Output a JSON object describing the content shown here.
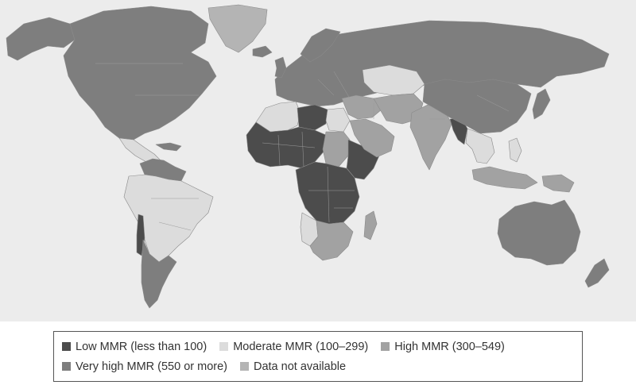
{
  "colors": {
    "ocean": "#ececec",
    "low": "#4c4c4c",
    "moderate": "#dcdcdc",
    "high": "#a2a2a2",
    "very_high": "#7e7e7e",
    "na": "#b4b4b4"
  },
  "legend": {
    "items": [
      {
        "key": "low",
        "label": "Low MMR (less than 100)",
        "color": "#4c4c4c"
      },
      {
        "key": "moderate",
        "label": "Moderate MMR (100–299)",
        "color": "#dcdcdc"
      },
      {
        "key": "high",
        "label": "High MMR (300–549)",
        "color": "#a2a2a2"
      },
      {
        "key": "very_high",
        "label": "Very high MMR (550 or more)",
        "color": "#7e7e7e"
      },
      {
        "key": "na",
        "label": "Data not available",
        "color": "#b4b4b4"
      }
    ]
  },
  "regions": [
    {
      "name": "north-america",
      "category": "very_high"
    },
    {
      "name": "greenland",
      "category": "na"
    },
    {
      "name": "alaska",
      "category": "very_high"
    },
    {
      "name": "central-america",
      "category": "moderate"
    },
    {
      "name": "caribbean",
      "category": "very_high"
    },
    {
      "name": "venezuela-guianas",
      "category": "very_high"
    },
    {
      "name": "south-america-north",
      "category": "moderate"
    },
    {
      "name": "southern-cone",
      "category": "very_high"
    },
    {
      "name": "andes-strip",
      "category": "low"
    },
    {
      "name": "europe-russia",
      "category": "very_high"
    },
    {
      "name": "iceland",
      "category": "very_high"
    },
    {
      "name": "uk-ireland",
      "category": "very_high"
    },
    {
      "name": "scandinavia",
      "category": "very_high"
    },
    {
      "name": "north-africa-west",
      "category": "moderate"
    },
    {
      "name": "libya",
      "category": "low"
    },
    {
      "name": "egypt",
      "category": "moderate"
    },
    {
      "name": "west-africa",
      "category": "low"
    },
    {
      "name": "sudan",
      "category": "high"
    },
    {
      "name": "horn-of-africa",
      "category": "low"
    },
    {
      "name": "central-east-africa",
      "category": "low"
    },
    {
      "name": "angola",
      "category": "moderate"
    },
    {
      "name": "southern-africa",
      "category": "high"
    },
    {
      "name": "madagascar",
      "category": "high"
    },
    {
      "name": "middle-east",
      "category": "high"
    },
    {
      "name": "arabia",
      "category": "high"
    },
    {
      "name": "central-asia",
      "category": "moderate"
    },
    {
      "name": "iran-pakistan",
      "category": "high"
    },
    {
      "name": "india",
      "category": "high"
    },
    {
      "name": "china-mongolia",
      "category": "very_high"
    },
    {
      "name": "japan",
      "category": "very_high"
    },
    {
      "name": "southeast-asia-mainland",
      "category": "moderate"
    },
    {
      "name": "myanmar-bangladesh",
      "category": "low"
    },
    {
      "name": "indonesia",
      "category": "high"
    },
    {
      "name": "philippines",
      "category": "moderate"
    },
    {
      "name": "new-guinea",
      "category": "high"
    },
    {
      "name": "australia",
      "category": "very_high"
    },
    {
      "name": "new-zealand",
      "category": "very_high"
    }
  ]
}
